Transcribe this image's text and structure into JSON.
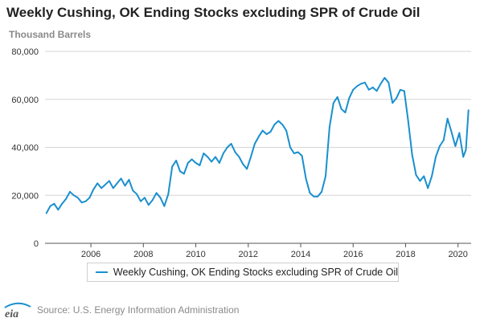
{
  "header": {
    "title": "Weekly Cushing, OK Ending Stocks excluding SPR of Crude Oil",
    "units": "Thousand Barrels"
  },
  "footer": {
    "logo_text": "eia",
    "source": "Source: U.S. Energy Information Administration"
  },
  "colors": {
    "series": "#1a8fce",
    "grid": "#d6d6d6",
    "axis": "#555555"
  },
  "chart_data": {
    "type": "line",
    "title": "Weekly Cushing, OK Ending Stocks excluding SPR of Crude Oil",
    "ylabel": "Thousand Barrels",
    "xlabel": "",
    "xlim": [
      2004.25,
      2020.5
    ],
    "ylim": [
      0,
      80000
    ],
    "x_ticks": [
      2006,
      2008,
      2010,
      2012,
      2014,
      2016,
      2018,
      2020
    ],
    "x_tick_labels": [
      "2006",
      "2008",
      "2010",
      "2012",
      "2014",
      "2016",
      "2018",
      "2020"
    ],
    "y_ticks": [
      0,
      20000,
      40000,
      60000,
      80000
    ],
    "y_tick_labels": [
      "0",
      "20,000",
      "40,000",
      "60,000",
      "80,000"
    ],
    "grid": true,
    "legend_position": "bottom",
    "series": [
      {
        "name": "Weekly Cushing, OK Ending Stocks excluding SPR of Crude Oil",
        "x": [
          2004.3,
          2004.45,
          2004.6,
          2004.75,
          2004.9,
          2005.05,
          2005.2,
          2005.35,
          2005.5,
          2005.65,
          2005.8,
          2005.95,
          2006.1,
          2006.25,
          2006.4,
          2006.55,
          2006.7,
          2006.85,
          2007.0,
          2007.15,
          2007.3,
          2007.45,
          2007.6,
          2007.75,
          2007.9,
          2008.05,
          2008.2,
          2008.35,
          2008.5,
          2008.65,
          2008.8,
          2008.95,
          2009.1,
          2009.25,
          2009.4,
          2009.55,
          2009.7,
          2009.85,
          2010.0,
          2010.15,
          2010.3,
          2010.45,
          2010.6,
          2010.75,
          2010.9,
          2011.05,
          2011.2,
          2011.35,
          2011.5,
          2011.65,
          2011.8,
          2011.95,
          2012.1,
          2012.25,
          2012.4,
          2012.55,
          2012.7,
          2012.85,
          2013.0,
          2013.15,
          2013.3,
          2013.45,
          2013.6,
          2013.75,
          2013.9,
          2014.05,
          2014.2,
          2014.35,
          2014.5,
          2014.65,
          2014.8,
          2014.95,
          2015.1,
          2015.25,
          2015.4,
          2015.55,
          2015.7,
          2015.85,
          2016.0,
          2016.15,
          2016.3,
          2016.45,
          2016.6,
          2016.75,
          2016.9,
          2017.05,
          2017.2,
          2017.35,
          2017.5,
          2017.65,
          2017.8,
          2017.95,
          2018.1,
          2018.25,
          2018.4,
          2018.55,
          2018.7,
          2018.85,
          2019.0,
          2019.15,
          2019.3,
          2019.45,
          2019.6,
          2019.75,
          2019.9,
          2020.05,
          2020.2,
          2020.3,
          2020.4
        ],
        "y": [
          12500,
          15500,
          16500,
          14000,
          16500,
          18500,
          21500,
          20000,
          19000,
          17000,
          17500,
          19000,
          22500,
          25000,
          23000,
          24500,
          26000,
          23000,
          25000,
          27000,
          24000,
          26500,
          22000,
          20500,
          17500,
          19000,
          16000,
          18000,
          21000,
          19000,
          15500,
          20500,
          32000,
          34500,
          30000,
          29000,
          33500,
          35000,
          33500,
          32500,
          37500,
          36000,
          34000,
          36000,
          33500,
          37500,
          40000,
          41500,
          38000,
          36000,
          33000,
          31000,
          36000,
          41500,
          44500,
          47000,
          45500,
          46500,
          49500,
          51000,
          49500,
          47000,
          40000,
          37500,
          38000,
          36500,
          27000,
          21000,
          19500,
          19500,
          21500,
          28000,
          48500,
          58500,
          61000,
          56000,
          54500,
          60500,
          64000,
          65500,
          66500,
          67000,
          64000,
          65000,
          63500,
          66500,
          69000,
          67000,
          58500,
          60500,
          64000,
          63500,
          51000,
          37000,
          28500,
          26000,
          28000,
          23000,
          28000,
          36000,
          40500,
          43000,
          52000,
          46500,
          40500,
          46000,
          36000,
          39000,
          55500
        ]
      }
    ]
  }
}
